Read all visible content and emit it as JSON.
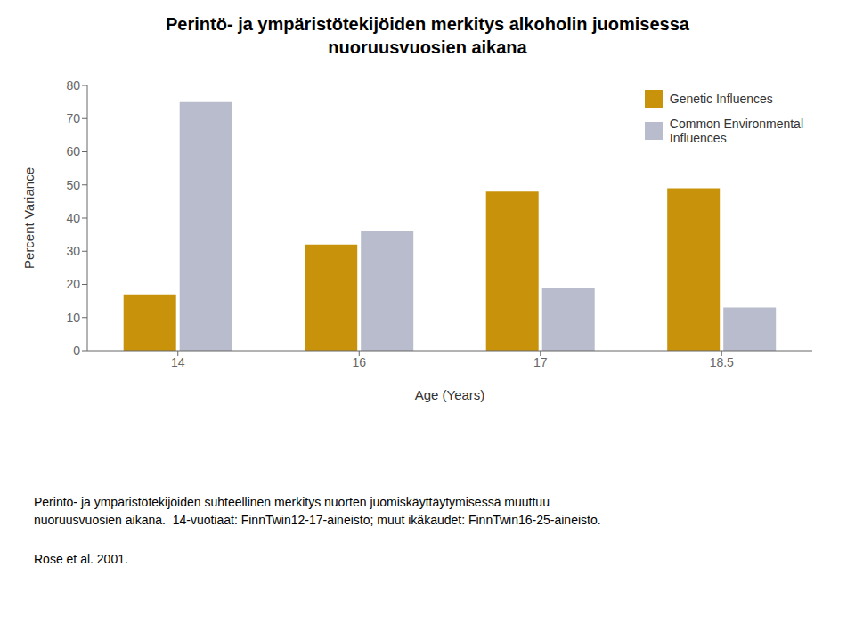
{
  "chart_data": {
    "type": "bar",
    "title": "Perintö- ja ympäristötekijöiden merkitys alkoholin juomisessa\nnuoruusvuosien aikana",
    "xlabel": "Age (Years)",
    "ylabel": "Percent Variance",
    "categories": [
      "14",
      "16",
      "17",
      "18.5"
    ],
    "series": [
      {
        "name": "Genetic Influences",
        "color": "#C8930A",
        "values": [
          17,
          32,
          48,
          49
        ]
      },
      {
        "name": "Common Environmental\nInfluences",
        "color": "#B8BCCC",
        "values": [
          75,
          36,
          19,
          13
        ]
      }
    ],
    "ylim": [
      0,
      80
    ],
    "yticks": [
      0,
      10,
      20,
      30,
      40,
      50,
      60,
      70,
      80
    ],
    "grid": false,
    "legend": "upper right",
    "annotations": [
      "Perintö- ja ympäristötekijöiden suhteellinen merkitys nuorten juomiskäyttäytymisessä muuttuu",
      "nuoruusvuosien aikana.  14-vuotiaat: FinnTwin12-17-aineisto; muut ikäkaudet: FinnTwin16-25-aineisto.",
      "Rose et al. 2001."
    ]
  }
}
